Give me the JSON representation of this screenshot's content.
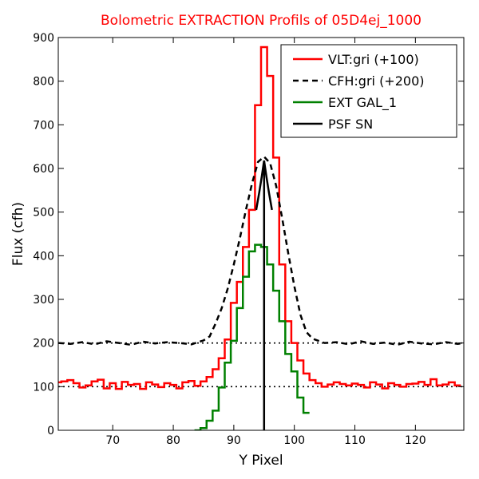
{
  "chart_data": {
    "type": "line",
    "title": "Bolometric EXTRACTION Profils of 05D4ej_1000",
    "title_color": "#ff0000",
    "xlabel": "Y Pixel",
    "ylabel": "Flux (cfh)",
    "xlim": [
      61,
      128
    ],
    "ylim": [
      0,
      900
    ],
    "xticks": [
      70,
      80,
      90,
      100,
      110,
      120
    ],
    "yticks": [
      0,
      100,
      200,
      300,
      400,
      500,
      600,
      700,
      800,
      900
    ],
    "legend_position": "top-right",
    "reference_lines": [
      {
        "y": 100,
        "style": "dotted",
        "color": "#000000"
      },
      {
        "y": 200,
        "style": "dotted",
        "color": "#000000"
      }
    ],
    "series": [
      {
        "name": "VLT:gri (+100)",
        "color": "#ff0000",
        "style": "steps",
        "x": [
          61,
          62,
          63,
          64,
          65,
          66,
          67,
          68,
          69,
          70,
          71,
          72,
          73,
          74,
          75,
          76,
          77,
          78,
          79,
          80,
          81,
          82,
          83,
          84,
          85,
          86,
          87,
          88,
          89,
          90,
          91,
          92,
          93,
          94,
          95,
          96,
          97,
          98,
          99,
          100,
          101,
          102,
          103,
          104,
          105,
          106,
          107,
          108,
          109,
          110,
          111,
          112,
          113,
          114,
          115,
          116,
          117,
          118,
          119,
          120,
          121,
          122,
          123,
          124,
          125,
          126,
          127
        ],
        "y": [
          110,
          112,
          115,
          108,
          98,
          103,
          112,
          116,
          96,
          108,
          95,
          111,
          104,
          106,
          95,
          110,
          105,
          99,
          108,
          104,
          96,
          110,
          113,
          102,
          112,
          122,
          140,
          165,
          208,
          292,
          340,
          420,
          505,
          745,
          878,
          812,
          625,
          380,
          250,
          200,
          160,
          130,
          115,
          108,
          100,
          105,
          110,
          106,
          103,
          107,
          104,
          98,
          110,
          105,
          96,
          108,
          104,
          100,
          106,
          107,
          111,
          104,
          117,
          103,
          105,
          110,
          103
        ]
      },
      {
        "name": "CFH:gri (+200)",
        "color": "#000000",
        "style": "dashed",
        "x": [
          61,
          63,
          65,
          67,
          69,
          71,
          73,
          75,
          77,
          79,
          81,
          83,
          85,
          86,
          87,
          88,
          89,
          90,
          91,
          92,
          93,
          94,
          95,
          96,
          97,
          98,
          99,
          100,
          101,
          102,
          103,
          104,
          105,
          107,
          109,
          111,
          113,
          115,
          117,
          119,
          121,
          123,
          125,
          127,
          128
        ],
        "y": [
          200,
          198,
          202,
          197,
          204,
          200,
          196,
          203,
          199,
          202,
          200,
          197,
          206,
          215,
          245,
          280,
          325,
          380,
          440,
          505,
          565,
          615,
          627,
          612,
          560,
          485,
          405,
          330,
          265,
          225,
          210,
          205,
          200,
          202,
          197,
          204,
          198,
          201,
          196,
          203,
          199,
          197,
          202,
          198,
          200
        ]
      },
      {
        "name": "EXT GAL_1",
        "color": "#008000",
        "style": "steps",
        "x": [
          84,
          85,
          86,
          87,
          88,
          89,
          90,
          91,
          92,
          93,
          94,
          95,
          96,
          97,
          98,
          99,
          100,
          101,
          102
        ],
        "y": [
          0,
          5,
          22,
          45,
          98,
          155,
          205,
          280,
          352,
          410,
          425,
          420,
          380,
          320,
          250,
          175,
          135,
          75,
          40
        ]
      },
      {
        "name": "PSF SN",
        "color": "#000000",
        "style": "solid",
        "x": [
          93.7,
          94.2,
          94.6,
          95.0,
          95.4,
          95.8,
          96.3
        ],
        "y": [
          505,
          545,
          580,
          618,
          580,
          545,
          505
        ]
      }
    ],
    "vertical_line": {
      "x": 95,
      "y_from": 0,
      "y_to": 618,
      "color": "#000000"
    }
  }
}
